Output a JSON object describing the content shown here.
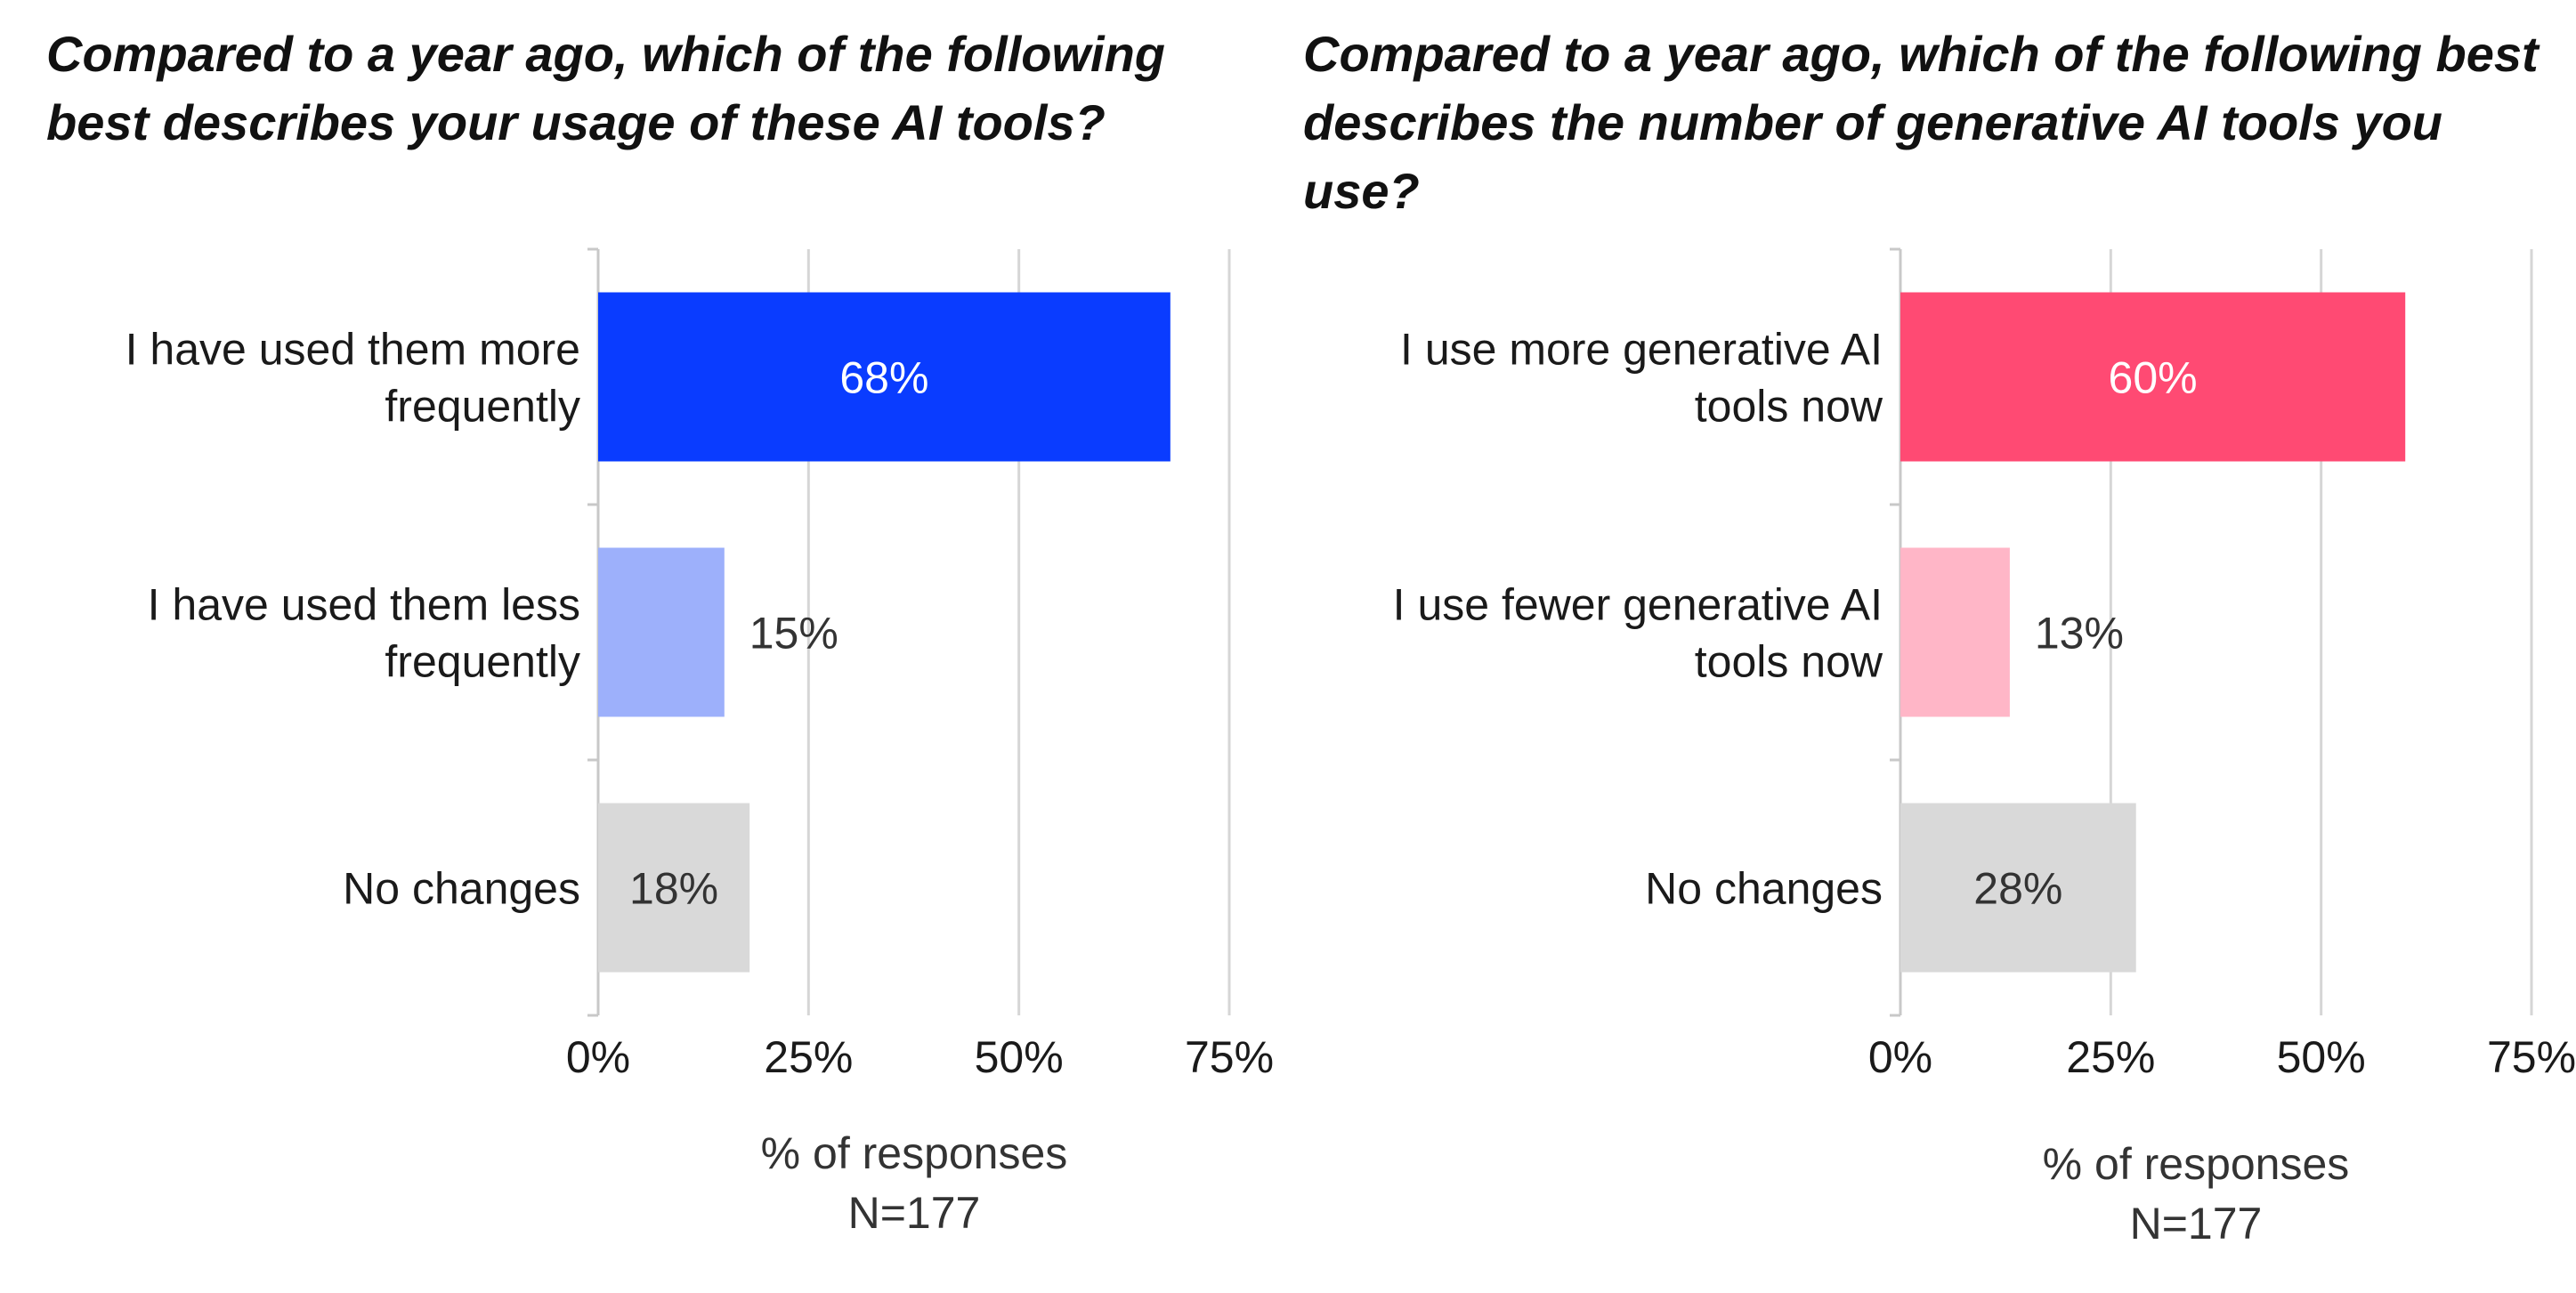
{
  "chart_data": [
    {
      "type": "bar",
      "orientation": "horizontal",
      "title": {
        "pre": "Compared to a year ago, which of the following best describes your ",
        "bold": "usage of these AI tools",
        "post": "?"
      },
      "categories": [
        [
          "I have used them more",
          "frequently"
        ],
        [
          "I have used them less",
          "frequently"
        ],
        [
          "No changes"
        ]
      ],
      "values": [
        68,
        15,
        18
      ],
      "value_labels": [
        "68%",
        "15%",
        "18%"
      ],
      "colors": [
        "#0a3cff",
        "#9db0fb",
        "#d9d9d9"
      ],
      "label_colors": [
        "#ffffff",
        "#333333",
        "#333333"
      ],
      "xlim": [
        0,
        75
      ],
      "xticks": [
        0,
        25,
        50,
        75
      ],
      "xtick_labels": [
        "0%",
        "25%",
        "50%",
        "75%"
      ],
      "xlabel": "% of responses",
      "note": "N=177",
      "grid": true
    },
    {
      "type": "bar",
      "orientation": "horizontal",
      "title": {
        "pre": "Compared to a year ago, which of the following best describes ",
        "bold": "the number of generative AI tools",
        "post": " you use?"
      },
      "categories": [
        [
          "I use more generative AI",
          "tools now"
        ],
        [
          "I use fewer generative AI",
          "tools now"
        ],
        [
          "No changes"
        ]
      ],
      "values": [
        60,
        13,
        28
      ],
      "value_labels": [
        "60%",
        "13%",
        "28%"
      ],
      "colors": [
        "#ff4a73",
        "#ffb6c7",
        "#d9d9d9"
      ],
      "label_colors": [
        "#ffffff",
        "#333333",
        "#333333"
      ],
      "xlim": [
        0,
        75
      ],
      "xticks": [
        0,
        25,
        50,
        75
      ],
      "xtick_labels": [
        "0%",
        "25%",
        "50%",
        "75%"
      ],
      "xlabel": "% of responses",
      "note": "N=177",
      "grid": true
    }
  ]
}
